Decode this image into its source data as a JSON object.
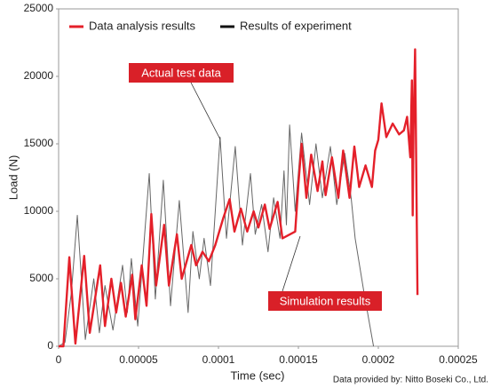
{
  "chart_data": {
    "type": "line",
    "x_label": "Time (sec)",
    "y_label": "Load (N)",
    "xlim": [
      0,
      0.00025
    ],
    "xticks": [
      0,
      5e-05,
      0.0001,
      0.00015,
      0.0002,
      0.00025
    ],
    "ylim": [
      0,
      25000
    ],
    "yticks": [
      0,
      5000,
      10000,
      15000,
      20000,
      25000
    ],
    "grid": false,
    "legend": "top-left",
    "series": [
      {
        "name": "Data analysis results",
        "color": "#e4202a",
        "x": [
          0,
          3e-06,
          6.7e-06,
          1.05e-05,
          1.6e-05,
          1.95e-05,
          2.6e-05,
          2.9e-05,
          3.3e-05,
          3.6e-05,
          3.9e-05,
          4.2e-05,
          4.6e-05,
          4.8e-05,
          5.2e-05,
          5.5e-05,
          5.8e-05,
          6.1e-05,
          6.6e-05,
          6.9e-05,
          7.4e-05,
          7.7e-05,
          8.3e-05,
          8.6e-05,
          9e-05,
          9.4e-05,
          9.8e-05,
          0.000103,
          0.000107,
          0.00011,
          0.000114,
          0.000118,
          0.000122,
          0.000125,
          0.000129,
          0.000132,
          0.000137,
          0.00014,
          0.000148,
          0.00015,
          0.000152,
          0.000155,
          0.000158,
          0.000162,
          0.000165,
          0.000167,
          0.000171,
          0.000175,
          0.000178,
          0.000182,
          0.000185,
          0.000188,
          0.000192,
          0.000196,
          0.000198,
          0.0002,
          0.000202,
          0.000205,
          0.000209,
          0.000213,
          0.000216,
          0.000218,
          0.00022,
          0.000221,
          0.0002215,
          0.000222,
          0.000223,
          0.0002245
        ],
        "values": [
          0,
          0,
          6600,
          200,
          6700,
          1000,
          6000,
          1500,
          5000,
          2500,
          4700,
          2200,
          5300,
          2000,
          6000,
          3000,
          9800,
          4500,
          9000,
          4500,
          8300,
          5000,
          7500,
          6000,
          7000,
          6300,
          7500,
          9500,
          10900,
          8500,
          10200,
          8500,
          10000,
          8800,
          10500,
          8700,
          10700,
          8000,
          8500,
          12000,
          15000,
          11000,
          14200,
          11500,
          13700,
          11200,
          14000,
          11000,
          14500,
          11000,
          14800,
          11800,
          13400,
          11800,
          14500,
          15300,
          18000,
          15500,
          16500,
          15700,
          16000,
          17000,
          14000,
          19700,
          9700,
          16000,
          22000,
          3800
        ]
      },
      {
        "name": "Results of experiment",
        "color": "#666666",
        "x": [
          0,
          4e-06,
          8e-06,
          1.17e-05,
          1.67e-05,
          2.2e-05,
          2.55e-05,
          2.9e-05,
          3.4e-05,
          4e-05,
          4.3e-05,
          4.55e-05,
          4.95e-05,
          5.67e-05,
          6.05e-05,
          6.55e-05,
          7e-05,
          7.55e-05,
          8.1e-05,
          8.4e-05,
          8.8e-05,
          9.1e-05,
          9.5e-05,
          0.000101,
          0.000105,
          0.0001105,
          0.000115,
          0.00012,
          0.000123,
          0.000127,
          0.000131,
          0.0001345,
          0.0001385,
          0.000141,
          0.0001425,
          0.0001445,
          0.000148,
          0.000152,
          0.000157,
          0.000161,
          0.000165,
          0.00017,
          0.000174,
          0.000179,
          0.000183,
          0.0001855,
          0.000191,
          0.000197
        ],
        "values": [
          0,
          300,
          4000,
          9700,
          500,
          5000,
          1000,
          4500,
          1200,
          6000,
          2500,
          6500,
          1500,
          12800,
          3500,
          12300,
          3000,
          10800,
          2500,
          8500,
          5000,
          8000,
          4500,
          15500,
          8000,
          14800,
          7500,
          12800,
          8300,
          10500,
          7000,
          11000,
          8000,
          13000,
          9000,
          16400,
          10000,
          15800,
          10500,
          15000,
          11000,
          14800,
          10500,
          14300,
          11000,
          8000,
          4000,
          0
        ]
      }
    ],
    "annotations": [
      "Actual test data",
      "Simulation results"
    ],
    "credit": "Data provided by: Nitto Boseki Co., Ltd."
  }
}
